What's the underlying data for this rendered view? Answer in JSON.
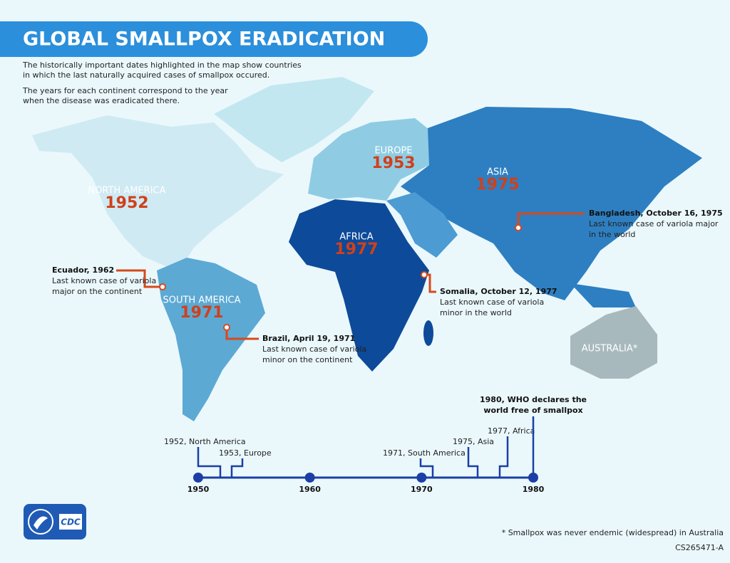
{
  "title": "GLOBAL SMALLPOX ERADICATION",
  "intro": [
    [
      "The historically important dates highlighted in the map show countries",
      "in which the last naturally acquired cases of smallpox occured."
    ],
    [
      "The years for each continent correspond to the year",
      "when the disease was eradicated there."
    ]
  ],
  "continents": [
    {
      "name": "NORTH AMERICA",
      "year": 1952
    },
    {
      "name": "EUROPE",
      "year": 1953
    },
    {
      "name": "ASIA",
      "year": 1975
    },
    {
      "name": "AFRICA",
      "year": 1977
    },
    {
      "name": "SOUTH AMERICA",
      "year": 1971
    },
    {
      "name": "AUSTRALIA*"
    }
  ],
  "callouts": [
    {
      "title": "Ecuador, 1962",
      "lines": [
        "Last known case of variola",
        "major on the continent"
      ]
    },
    {
      "title": "Brazil, April 19, 1971",
      "lines": [
        "Last known case of variola",
        "minor on the continent"
      ]
    },
    {
      "title": "Somalia, October 12, 1977",
      "lines": [
        "Last known case of variola",
        "minor in the world"
      ]
    },
    {
      "title": "Bangladesh, October 16, 1975",
      "lines": [
        "Last known case of variola major",
        "in the world"
      ]
    }
  ],
  "timeline": {
    "ticks": [
      1950,
      1960,
      1970,
      1980
    ],
    "events": [
      {
        "lines": [
          "1952, North America"
        ]
      },
      {
        "lines": [
          "1953, Europe"
        ]
      },
      {
        "lines": [
          "1971, South America"
        ]
      },
      {
        "lines": [
          "1975, Asia"
        ]
      },
      {
        "lines": [
          "1977, Africa"
        ]
      },
      {
        "lines": [
          "1980, WHO declares the",
          "world free of smallpox"
        ]
      }
    ]
  },
  "logo": "CDC",
  "footnote": "* Smallpox was never endemic (widespread) in Australia",
  "code": "CS265471-A"
}
